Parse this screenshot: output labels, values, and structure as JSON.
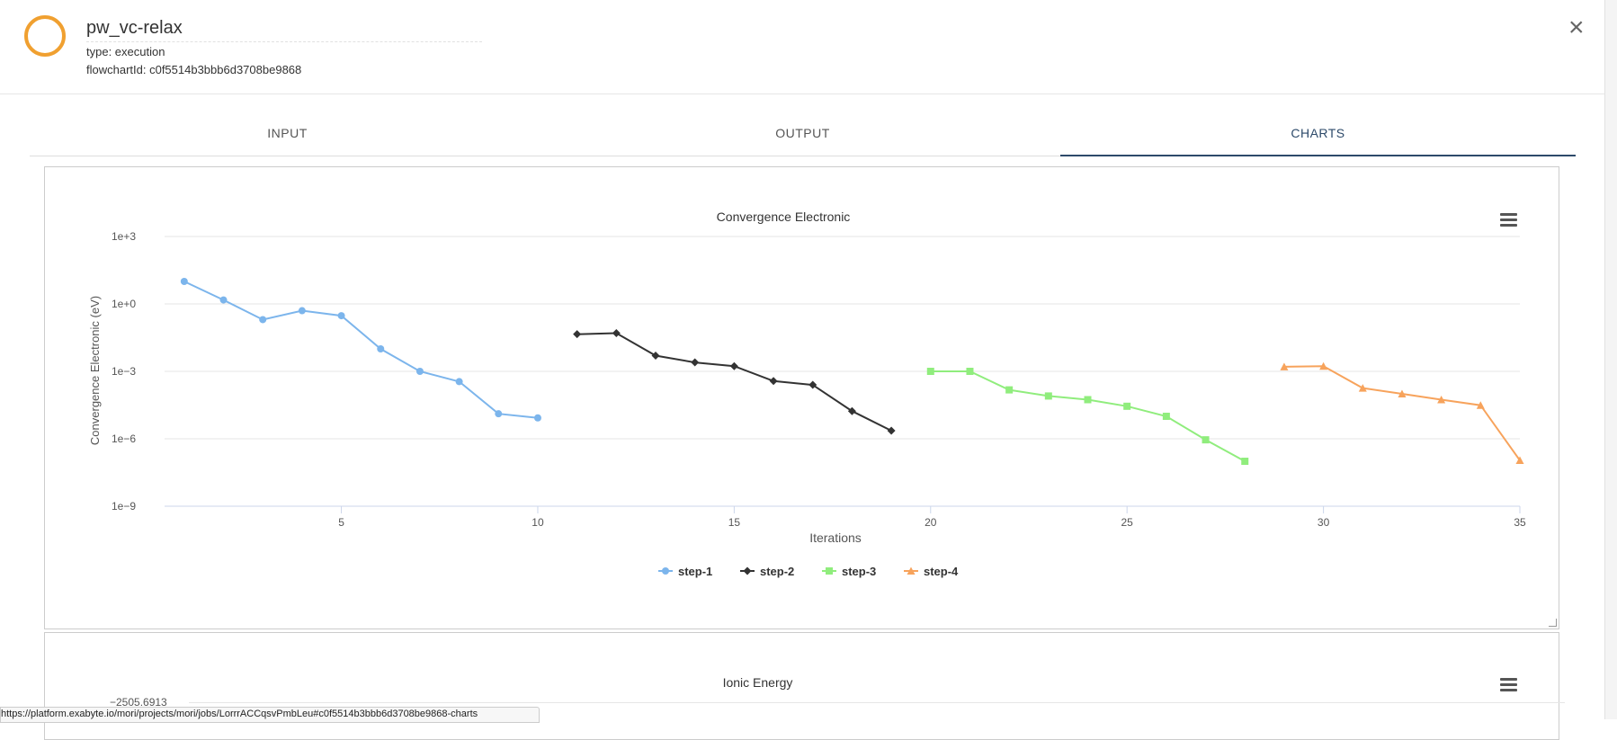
{
  "header": {
    "title": "pw_vc-relax",
    "type_line": "type: execution",
    "flowchart_line": "flowchartId: c0f5514b3bbb6d3708be9868",
    "close_symbol": "×",
    "status_color": "#f0a030"
  },
  "tabs": [
    {
      "label": "INPUT"
    },
    {
      "label": "OUTPUT"
    },
    {
      "label": "CHARTS",
      "active": true
    }
  ],
  "chart_data": [
    {
      "type": "line",
      "title": "Convergence Electronic",
      "xlabel": "Iterations",
      "ylabel": "Convergence Electronic (eV)",
      "yscale": "log",
      "ylim": [
        1e-09,
        1000
      ],
      "xlim": [
        0.5,
        35
      ],
      "x_ticks": [
        "5",
        "10",
        "15",
        "20",
        "25",
        "30",
        "35"
      ],
      "y_ticks": [
        "1e+3",
        "1e+0",
        "1e−3",
        "1e−6",
        "1e−9"
      ],
      "legend_position": "bottom-center",
      "grid": true,
      "series": [
        {
          "name": "step-1",
          "color": "#7cb5ec",
          "marker": "circle",
          "x": [
            1,
            2,
            3,
            4,
            5,
            6,
            7,
            8,
            9,
            10
          ],
          "y": [
            10,
            1.5,
            0.2,
            0.5,
            0.3,
            0.01,
            0.001,
            0.00035,
            1.3e-05,
            8.5e-06
          ]
        },
        {
          "name": "step-2",
          "color": "#333333",
          "marker": "diamond",
          "x": [
            11,
            12,
            13,
            14,
            15,
            16,
            17,
            18,
            19
          ],
          "y": [
            0.045,
            0.05,
            0.005,
            0.0025,
            0.0017,
            0.00037,
            0.00025,
            1.7e-05,
            2.3e-06
          ]
        },
        {
          "name": "step-3",
          "color": "#90ed7d",
          "marker": "square",
          "x": [
            20,
            21,
            22,
            23,
            24,
            25,
            26,
            27,
            28
          ],
          "y": [
            0.001,
            0.001,
            0.00015,
            8e-05,
            5.5e-05,
            2.8e-05,
            1e-05,
            9e-07,
            1e-07
          ]
        },
        {
          "name": "step-4",
          "color": "#f7a35c",
          "marker": "triangle",
          "x": [
            29,
            30,
            31,
            32,
            33,
            34,
            35
          ],
          "y": [
            0.0016,
            0.0017,
            0.00018,
            0.0001,
            5.5e-05,
            3.1e-05,
            1.1e-07
          ]
        }
      ]
    },
    {
      "type": "line",
      "title": "Ionic Energy",
      "y_ticks": [
        "−2505.6913"
      ]
    }
  ],
  "status_url": "https://platform.exabyte.io/mori/projects/mori/jobs/LorrrACCqsvPmbLeu#c0f5514b3bbb6d3708be9868-charts"
}
